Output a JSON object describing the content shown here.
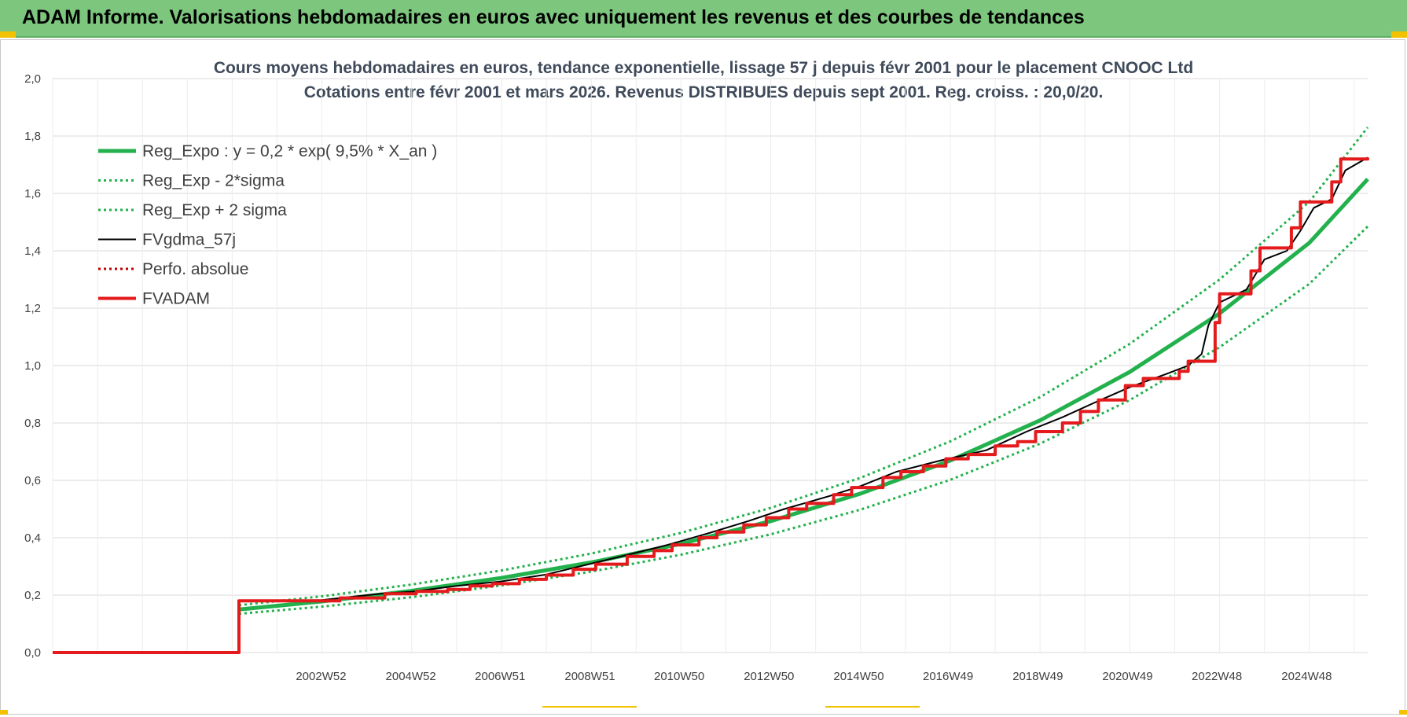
{
  "banner": {
    "title": "ADAM Informe. Valorisations hebdomadaires en euros avec uniquement les revenus et des courbes de tendances"
  },
  "colors": {
    "banner_bg": "#7dc67e",
    "reg_expo": "#22b14c",
    "fvgdma": "#000000",
    "fvadam": "#e41a1c",
    "grid": "#d9d9d9"
  },
  "chart_data": {
    "type": "line",
    "title": [
      "Cours moyens hebdomadaires en euros, tendance exponentielle, lissage 57 j depuis févr 2001 pour le placement CNOOC Ltd",
      "Cotations entre févr 2001 et mars 2026. Revenus DISTRIBUES depuis sept 2001. Reg. croiss. : 20,0/20."
    ],
    "x_range": [
      1997.0,
      2026.3
    ],
    "ylim": [
      0,
      2.0
    ],
    "y_ticks": [
      "0,0",
      "0,2",
      "0,4",
      "0,6",
      "0,8",
      "1,0",
      "1,2",
      "1,4",
      "1,6",
      "1,8",
      "2,0"
    ],
    "x_ticks": [
      {
        "label": "2002W52",
        "x": 2002.98
      },
      {
        "label": "2004W52",
        "x": 2004.98
      },
      {
        "label": "2006W51",
        "x": 2006.97
      },
      {
        "label": "2008W51",
        "x": 2008.97
      },
      {
        "label": "2010W50",
        "x": 2010.96
      },
      {
        "label": "2012W50",
        "x": 2012.96
      },
      {
        "label": "2014W50",
        "x": 2014.96
      },
      {
        "label": "2016W49",
        "x": 2016.95
      },
      {
        "label": "2018W49",
        "x": 2018.95
      },
      {
        "label": "2020W49",
        "x": 2020.95
      },
      {
        "label": "2022W48",
        "x": 2022.94
      },
      {
        "label": "2024W48",
        "x": 2024.94
      }
    ],
    "grid": true,
    "legend_position": "top-left",
    "series": [
      {
        "name": "Reg_Expo : y = 0,2 * exp( 9,5% *  X_an )",
        "style": "solid-thick",
        "color": "#22b14c",
        "points": [
          [
            2001.15,
            0.15
          ],
          [
            2003,
            0.178
          ],
          [
            2005,
            0.215
          ],
          [
            2007,
            0.26
          ],
          [
            2009,
            0.314
          ],
          [
            2011,
            0.379
          ],
          [
            2013,
            0.458
          ],
          [
            2015,
            0.554
          ],
          [
            2017,
            0.669
          ],
          [
            2019,
            0.809
          ],
          [
            2021,
            0.978
          ],
          [
            2023,
            1.182
          ],
          [
            2025,
            1.428
          ],
          [
            2026.3,
            1.65
          ]
        ]
      },
      {
        "name": "Reg_Exp - 2*sigma",
        "style": "dotted",
        "color": "#22b14c",
        "points": [
          [
            2001.15,
            0.135
          ],
          [
            2003,
            0.16
          ],
          [
            2005,
            0.193
          ],
          [
            2007,
            0.234
          ],
          [
            2009,
            0.282
          ],
          [
            2011,
            0.341
          ],
          [
            2013,
            0.412
          ],
          [
            2015,
            0.498
          ],
          [
            2017,
            0.602
          ],
          [
            2019,
            0.728
          ],
          [
            2021,
            0.88
          ],
          [
            2023,
            1.064
          ],
          [
            2025,
            1.285
          ],
          [
            2026.3,
            1.485
          ]
        ]
      },
      {
        "name": "Reg_Exp + 2 sigma",
        "style": "dotted",
        "color": "#22b14c",
        "points": [
          [
            2001.15,
            0.165
          ],
          [
            2003,
            0.196
          ],
          [
            2005,
            0.237
          ],
          [
            2007,
            0.286
          ],
          [
            2009,
            0.345
          ],
          [
            2011,
            0.417
          ],
          [
            2013,
            0.504
          ],
          [
            2015,
            0.609
          ],
          [
            2017,
            0.736
          ],
          [
            2019,
            0.89
          ],
          [
            2021,
            1.076
          ],
          [
            2023,
            1.3
          ],
          [
            2025,
            1.571
          ],
          [
            2026.3,
            1.83
          ]
        ]
      },
      {
        "name": "FVgdma_57j",
        "style": "solid-thin",
        "color": "#000000",
        "points": [
          [
            1997.0,
            0
          ],
          [
            2001.15,
            0
          ],
          [
            2001.15,
            0.178
          ],
          [
            2003.0,
            0.183
          ],
          [
            2004.3,
            0.205
          ],
          [
            2005.0,
            0.212
          ],
          [
            2006.0,
            0.232
          ],
          [
            2007.0,
            0.248
          ],
          [
            2008.0,
            0.272
          ],
          [
            2009.0,
            0.31
          ],
          [
            2009.8,
            0.34
          ],
          [
            2010.7,
            0.375
          ],
          [
            2011.6,
            0.415
          ],
          [
            2012.5,
            0.458
          ],
          [
            2013.3,
            0.5
          ],
          [
            2014.3,
            0.545
          ],
          [
            2015.0,
            0.58
          ],
          [
            2015.8,
            0.63
          ],
          [
            2016.8,
            0.67
          ],
          [
            2017.8,
            0.705
          ],
          [
            2018.7,
            0.77
          ],
          [
            2019.5,
            0.82
          ],
          [
            2020.2,
            0.87
          ],
          [
            2021.0,
            0.925
          ],
          [
            2021.8,
            0.97
          ],
          [
            2022.3,
            1.0
          ],
          [
            2022.6,
            1.04
          ],
          [
            2022.75,
            1.14
          ],
          [
            2023.0,
            1.22
          ],
          [
            2023.6,
            1.265
          ],
          [
            2024.0,
            1.37
          ],
          [
            2024.5,
            1.4
          ],
          [
            2024.8,
            1.47
          ],
          [
            2025.1,
            1.55
          ],
          [
            2025.5,
            1.58
          ],
          [
            2025.8,
            1.68
          ],
          [
            2026.3,
            1.725
          ]
        ]
      },
      {
        "name": "Perfo. absolue",
        "style": "dotted",
        "color": "#c00000",
        "points": []
      },
      {
        "name": "FVADAM",
        "style": "step-thick",
        "color": "#e41a1c",
        "steps": [
          [
            1997.0,
            0
          ],
          [
            2001.15,
            0.18
          ],
          [
            2003.4,
            0.19
          ],
          [
            2004.4,
            0.205
          ],
          [
            2005.1,
            0.213
          ],
          [
            2005.8,
            0.22
          ],
          [
            2006.3,
            0.232
          ],
          [
            2006.8,
            0.24
          ],
          [
            2007.4,
            0.255
          ],
          [
            2008.0,
            0.27
          ],
          [
            2008.6,
            0.29
          ],
          [
            2009.1,
            0.308
          ],
          [
            2009.8,
            0.335
          ],
          [
            2010.4,
            0.355
          ],
          [
            2010.8,
            0.375
          ],
          [
            2011.4,
            0.4
          ],
          [
            2011.8,
            0.42
          ],
          [
            2012.4,
            0.445
          ],
          [
            2012.9,
            0.47
          ],
          [
            2013.4,
            0.5
          ],
          [
            2013.8,
            0.52
          ],
          [
            2014.4,
            0.55
          ],
          [
            2014.8,
            0.575
          ],
          [
            2015.5,
            0.61
          ],
          [
            2015.9,
            0.63
          ],
          [
            2016.4,
            0.65
          ],
          [
            2016.9,
            0.675
          ],
          [
            2017.4,
            0.69
          ],
          [
            2018.0,
            0.72
          ],
          [
            2018.5,
            0.735
          ],
          [
            2018.9,
            0.77
          ],
          [
            2019.5,
            0.8
          ],
          [
            2019.9,
            0.84
          ],
          [
            2020.3,
            0.88
          ],
          [
            2020.9,
            0.93
          ],
          [
            2021.3,
            0.955
          ],
          [
            2022.1,
            0.98
          ],
          [
            2022.3,
            1.015
          ],
          [
            2022.9,
            1.15
          ],
          [
            2023.0,
            1.25
          ],
          [
            2023.7,
            1.33
          ],
          [
            2023.9,
            1.41
          ],
          [
            2024.6,
            1.48
          ],
          [
            2024.8,
            1.57
          ],
          [
            2025.5,
            1.64
          ],
          [
            2025.7,
            1.72
          ],
          [
            2026.3,
            1.725
          ]
        ]
      }
    ]
  }
}
